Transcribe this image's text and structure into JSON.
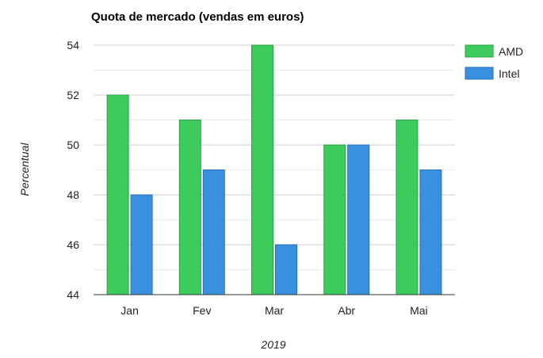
{
  "chart_data": {
    "type": "bar",
    "title": "Quota de mercado (vendas em euros)",
    "xlabel": "2019",
    "ylabel": "Percentual",
    "categories": [
      "Jan",
      "Fev",
      "Mar",
      "Abr",
      "Mai"
    ],
    "series": [
      {
        "name": "AMD",
        "color": "#3dcc5c",
        "stroke": "#2aa145",
        "values": [
          52,
          51,
          54,
          50,
          51
        ]
      },
      {
        "name": "Intel",
        "color": "#3990de",
        "stroke": "#2a6fb5",
        "values": [
          48,
          49,
          46,
          50,
          49
        ]
      }
    ],
    "ylim": [
      44,
      54
    ],
    "yticks": [
      44,
      46,
      48,
      50,
      52,
      54
    ],
    "grid": true,
    "legend_position": "top-right"
  }
}
